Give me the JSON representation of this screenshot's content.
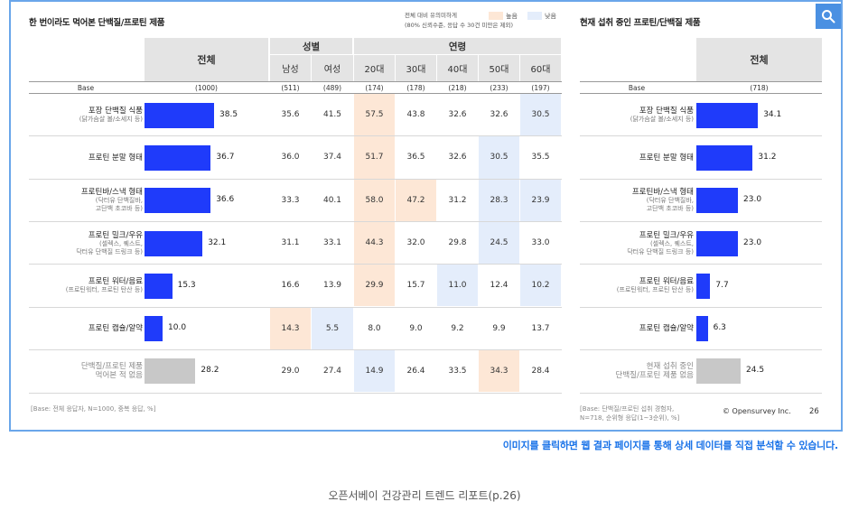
{
  "left": {
    "title": "한 번이라도 먹어본 단백질/프로틴 제품",
    "legend": {
      "note_line1": "전체 대비 유의미하게",
      "note_line2": "(80% 신뢰수준, 응답 수 30건 미만은 제외)",
      "high_label": "높음",
      "low_label": "낮음",
      "high_color": "#fde7d6",
      "low_color": "#e4edfb"
    },
    "header": {
      "total": "전체",
      "gender_group": "성별",
      "age_group": "연령",
      "columns": [
        "남성",
        "여성",
        "20대",
        "30대",
        "40대",
        "50대",
        "60대"
      ]
    },
    "base": {
      "label": "Base",
      "total": "(1000)",
      "columns": [
        "(511)",
        "(489)",
        "(174)",
        "(178)",
        "(218)",
        "(233)",
        "(197)"
      ]
    },
    "rows": [
      {
        "label": "포장 단백질 식품",
        "sub": "(닭가슴살 볼/소세지 등)",
        "total": "38.5",
        "cells": [
          "35.6",
          "41.5",
          "57.5",
          "43.8",
          "32.6",
          "32.6",
          "30.5"
        ],
        "flags": [
          "",
          "",
          "high",
          "",
          "",
          "",
          "low"
        ]
      },
      {
        "label": "프로틴 분말 형태",
        "sub": "",
        "total": "36.7",
        "cells": [
          "36.0",
          "37.4",
          "51.7",
          "36.5",
          "32.6",
          "30.5",
          "35.5"
        ],
        "flags": [
          "",
          "",
          "high",
          "",
          "",
          "low",
          ""
        ]
      },
      {
        "label": "프로틴바/스낵 형태",
        "sub": "(닥터유 단백질바,\n고단백 초코바 등)",
        "total": "36.6",
        "cells": [
          "33.3",
          "40.1",
          "58.0",
          "47.2",
          "31.2",
          "28.3",
          "23.9"
        ],
        "flags": [
          "",
          "",
          "high",
          "high",
          "",
          "low",
          "low"
        ]
      },
      {
        "label": "프로틴 밀크/우유",
        "sub": "(셀렉스, 퀘스트,\n닥터유 단백질 드링크 등)",
        "total": "32.1",
        "cells": [
          "31.1",
          "33.1",
          "44.3",
          "32.0",
          "29.8",
          "24.5",
          "33.0"
        ],
        "flags": [
          "",
          "",
          "high",
          "",
          "",
          "low",
          ""
        ]
      },
      {
        "label": "프로틴 워터/음료",
        "sub": "(프로틴워터, 프로틴 탄산 등)",
        "total": "15.3",
        "cells": [
          "16.6",
          "13.9",
          "29.9",
          "15.7",
          "11.0",
          "12.4",
          "10.2"
        ],
        "flags": [
          "",
          "",
          "high",
          "",
          "low",
          "",
          "low"
        ]
      },
      {
        "label": "프로틴 캡슐/알약",
        "sub": "",
        "total": "10.0",
        "cells": [
          "14.3",
          "5.5",
          "8.0",
          "9.0",
          "9.2",
          "9.9",
          "13.7"
        ],
        "flags": [
          "high",
          "low",
          "",
          "",
          "",
          "",
          ""
        ]
      },
      {
        "label": "단백질/프로틴 제품\n먹어본 적 없음",
        "sub": "",
        "total": "28.2",
        "grey": true,
        "cells": [
          "29.0",
          "27.4",
          "14.9",
          "26.4",
          "33.5",
          "34.3",
          "28.4"
        ],
        "flags": [
          "",
          "",
          "low",
          "",
          "",
          "high",
          ""
        ]
      }
    ],
    "footnote": "[Base: 전체 응답자, N=1000, 중복 응답, %]"
  },
  "right": {
    "title": "현재 섭취 중인 프로틴/단백질 제품",
    "header": {
      "total": "전체"
    },
    "base": {
      "label": "Base",
      "total": "(718)"
    },
    "rows": [
      {
        "label": "포장 단백질 식품",
        "sub": "(닭가슴살 볼/소세지 등)",
        "total": "34.1"
      },
      {
        "label": "프로틴 분말 형태",
        "sub": "",
        "total": "31.2"
      },
      {
        "label": "프로틴바/스낵 형태",
        "sub": "(닥터유 단백질바,\n고단백 초코바 등)",
        "total": "23.0"
      },
      {
        "label": "프로틴 밀크/우유",
        "sub": "(셀렉스, 퀘스트,\n닥터유 단백질 드링크 등)",
        "total": "23.0"
      },
      {
        "label": "프로틴 워터/음료",
        "sub": "(프로틴워터, 프로틴 탄산 등)",
        "total": "7.7"
      },
      {
        "label": "프로틴 캡슐/알약",
        "sub": "",
        "total": "6.3"
      },
      {
        "label": "현재 섭취 중인\n단백질/프로틴 제품 없음",
        "sub": "",
        "total": "24.5",
        "grey": true
      }
    ],
    "footnote": "[Base: 단백질/프로틴 섭취 경험자,\nN=718, 순위형 응답(1~3순위), %]",
    "credit": "© Opensurvey Inc.",
    "page": "26"
  },
  "notice": "이미지를 클릭하면 웹 결과 페이지를 통해 상세 데이터를 직접 분석할 수 있습니다.",
  "caption": "오픈서베이 건강관리 트렌드 리포트(p.26)",
  "bar_color": "#1f3bfa",
  "icons": {
    "zoom": "search-icon"
  },
  "chart_data": [
    {
      "type": "bar",
      "title": "한 번이라도 먹어본 단백질/프로틴 제품",
      "categories": [
        "포장 단백질 식품",
        "프로틴 분말 형태",
        "프로틴바/스낵 형태",
        "프로틴 밀크/우유",
        "프로틴 워터/음료",
        "프로틴 캡슐/알약",
        "단백질/프로틴 제품 먹어본 적 없음"
      ],
      "series": [
        {
          "name": "전체",
          "values": [
            38.5,
            36.7,
            36.6,
            32.1,
            15.3,
            10.0,
            28.2
          ]
        },
        {
          "name": "남성",
          "values": [
            35.6,
            36.0,
            33.3,
            31.1,
            16.6,
            14.3,
            29.0
          ]
        },
        {
          "name": "여성",
          "values": [
            41.5,
            37.4,
            40.1,
            33.1,
            13.9,
            5.5,
            27.4
          ]
        },
        {
          "name": "20대",
          "values": [
            57.5,
            51.7,
            58.0,
            44.3,
            29.9,
            8.0,
            14.9
          ]
        },
        {
          "name": "30대",
          "values": [
            43.8,
            36.5,
            47.2,
            32.0,
            15.7,
            9.0,
            26.4
          ]
        },
        {
          "name": "40대",
          "values": [
            32.6,
            32.6,
            31.2,
            29.8,
            11.0,
            9.2,
            33.5
          ]
        },
        {
          "name": "50대",
          "values": [
            32.6,
            30.5,
            28.3,
            24.5,
            12.4,
            9.9,
            34.3
          ]
        },
        {
          "name": "60대",
          "values": [
            30.5,
            35.5,
            23.9,
            33.0,
            10.2,
            13.7,
            28.4
          ]
        }
      ],
      "xlim": [
        0,
        70
      ]
    },
    {
      "type": "bar",
      "title": "현재 섭취 중인 프로틴/단백질 제품",
      "categories": [
        "포장 단백질 식품",
        "프로틴 분말 형태",
        "프로틴바/스낵 형태",
        "프로틴 밀크/우유",
        "프로틴 워터/음료",
        "프로틴 캡슐/알약",
        "현재 섭취 중인 단백질/프로틴 제품 없음"
      ],
      "series": [
        {
          "name": "전체",
          "values": [
            34.1,
            31.2,
            23.0,
            23.0,
            7.7,
            6.3,
            24.5
          ]
        }
      ],
      "xlim": [
        0,
        70
      ]
    }
  ]
}
